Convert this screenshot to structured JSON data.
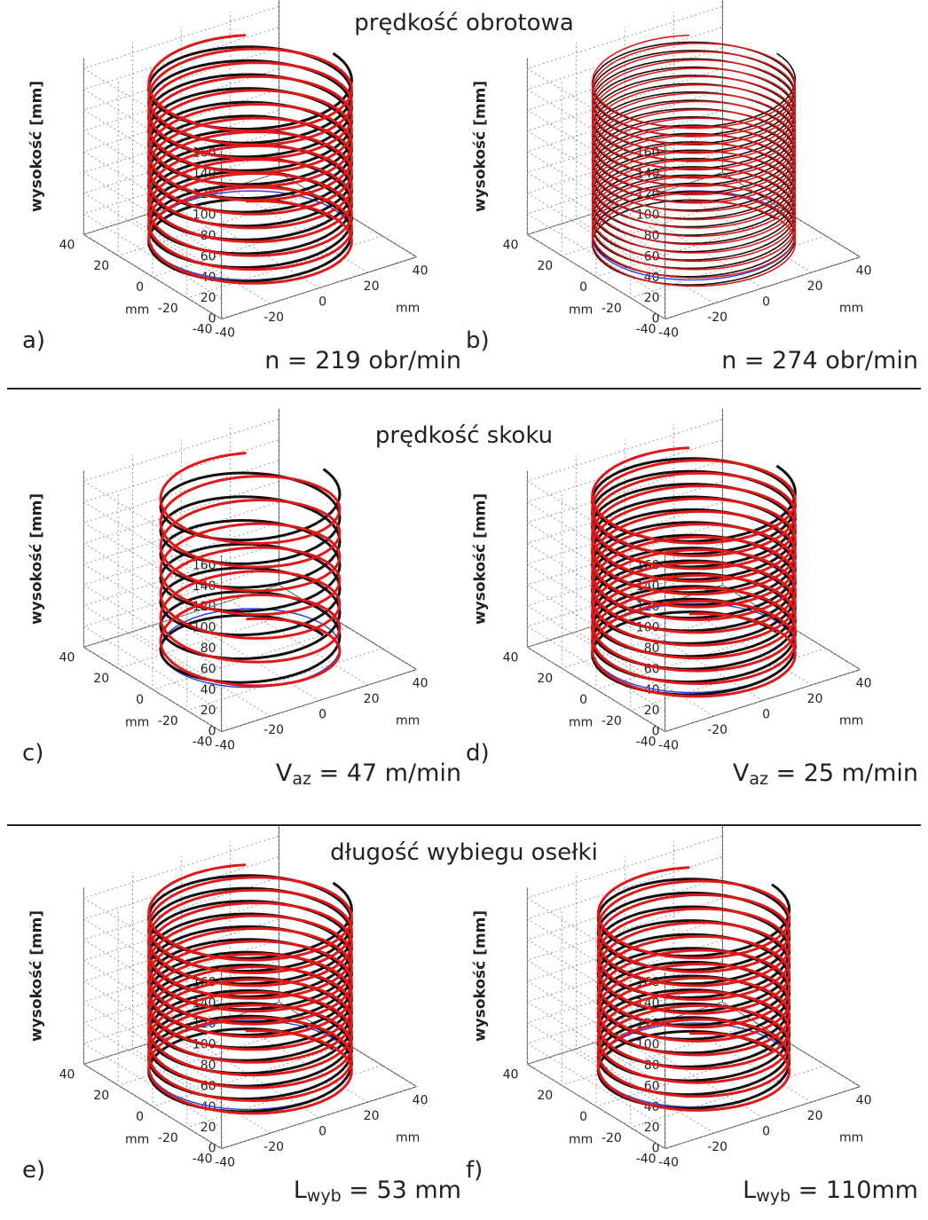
{
  "sections": [
    {
      "title": "prędkość obrotowa",
      "panels": [
        {
          "label": "a)",
          "parameter": {
            "text": "n = 219 obr/min"
          },
          "z_axis_label": "wysokość [mm]",
          "z_ticks": [
            0,
            20,
            40,
            60,
            80,
            100,
            120,
            140,
            160
          ],
          "x_ticks": [
            -40,
            -20,
            0,
            20,
            40
          ],
          "y_ticks": [
            -40,
            -20,
            0,
            20,
            40
          ],
          "x_unit": "mm",
          "y_unit": "mm"
        },
        {
          "label": "b)",
          "parameter": {
            "text": "n = 274 obr/min"
          },
          "z_axis_label": "wysokość [mm]",
          "z_ticks": [
            0,
            20,
            40,
            60,
            80,
            100,
            120,
            140,
            160
          ],
          "x_ticks": [
            -40,
            -20,
            0,
            20,
            40
          ],
          "y_ticks": [
            -40,
            -20,
            0,
            20,
            40
          ],
          "x_unit": "mm",
          "y_unit": "mm"
        }
      ]
    },
    {
      "title": "prędkość skoku",
      "panels": [
        {
          "label": "c)",
          "parameter": {
            "symbol": "V",
            "subscript": "az",
            "text": " = 47 m/min"
          },
          "z_axis_label": "wysokość [mm]",
          "z_ticks": [
            0,
            20,
            40,
            60,
            80,
            100,
            120,
            140,
            160
          ],
          "x_ticks": [
            -40,
            -20,
            0,
            20,
            40
          ],
          "y_ticks": [
            -40,
            -20,
            0,
            20,
            40
          ],
          "x_unit": "mm",
          "y_unit": "mm"
        },
        {
          "label": "d)",
          "parameter": {
            "symbol": "V",
            "subscript": "az",
            "text": " = 25 m/min"
          },
          "z_axis_label": "wysokość [mm]",
          "z_ticks": [
            0,
            20,
            40,
            60,
            80,
            100,
            120,
            140,
            160
          ],
          "x_ticks": [
            -40,
            -20,
            0,
            20,
            40
          ],
          "y_ticks": [
            -40,
            -20,
            0,
            20,
            40
          ],
          "x_unit": "mm",
          "y_unit": "mm"
        }
      ]
    },
    {
      "title": "długość wybiegu osełki",
      "panels": [
        {
          "label": "e)",
          "parameter": {
            "symbol": "L",
            "subscript": "wyb",
            "text": " = 53 mm"
          },
          "z_axis_label": "wysokość [mm]",
          "z_ticks": [
            0,
            20,
            40,
            60,
            80,
            100,
            120,
            140,
            160
          ],
          "x_ticks": [
            -40,
            -20,
            0,
            20,
            40
          ],
          "y_ticks": [
            -40,
            -20,
            0,
            20,
            40
          ],
          "x_unit": "mm",
          "y_unit": "mm"
        },
        {
          "label": "f)",
          "parameter": {
            "symbol": "L",
            "subscript": "wyb",
            "text": " = 110mm"
          },
          "z_axis_label": "wysokość [mm]",
          "z_ticks": [
            0,
            20,
            40,
            60,
            80,
            100,
            120,
            140,
            160
          ],
          "x_ticks": [
            -40,
            -20,
            0,
            20,
            40
          ],
          "y_ticks": [
            -40,
            -20,
            0,
            20,
            40
          ],
          "x_unit": "mm",
          "y_unit": "mm"
        }
      ]
    }
  ]
}
